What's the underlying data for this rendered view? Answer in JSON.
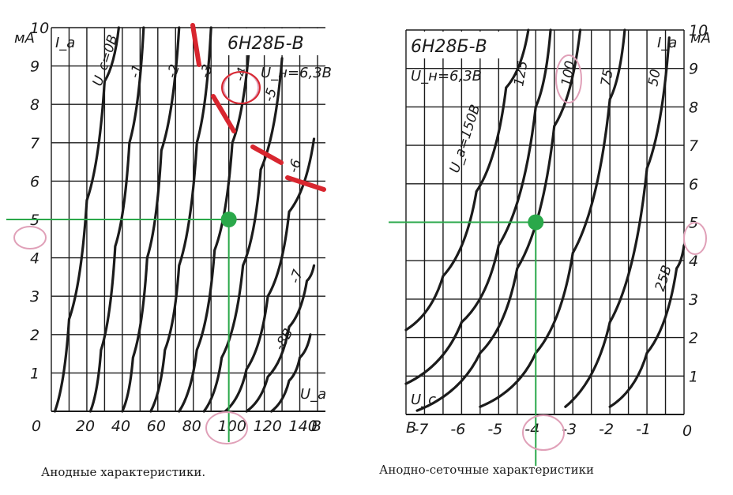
{
  "chart_data": [
    {
      "type": "line",
      "title": "6Н28Б-В",
      "subtitle": "U_н=6,3В",
      "caption": "Анодные характеристики.",
      "ylabel": "I_a",
      "yunit": "мА",
      "xlabel": "U_a",
      "xunit": "В",
      "xlim": [
        0,
        150
      ],
      "ylim": [
        0,
        10
      ],
      "xticks": [
        "20",
        "40",
        "60",
        "80",
        "100",
        "120",
        "140"
      ],
      "yticks": [
        "1",
        "2",
        "3",
        "4",
        "5",
        "6",
        "7",
        "8",
        "9",
        "10"
      ],
      "origin_label": "0",
      "grid": true,
      "series": [
        {
          "name": "U_c=0В",
          "x": [
            2,
            10,
            20,
            30,
            38
          ],
          "y": [
            0,
            2.4,
            5.5,
            8.6,
            10.0
          ]
        },
        {
          "name": "-1",
          "x": [
            22,
            28,
            36,
            44,
            52
          ],
          "y": [
            0,
            1.6,
            4.3,
            7.0,
            10.0
          ]
        },
        {
          "name": "-2",
          "x": [
            40,
            46,
            54,
            62,
            72
          ],
          "y": [
            0,
            1.4,
            4.0,
            6.8,
            10.0
          ]
        },
        {
          "name": "-3",
          "x": [
            56,
            64,
            72,
            82,
            90
          ],
          "y": [
            0,
            1.6,
            3.8,
            7.0,
            10.0
          ]
        },
        {
          "name": "-4",
          "x": [
            72,
            82,
            92,
            102,
            112
          ],
          "y": [
            0,
            1.6,
            4.2,
            7.0,
            9.8
          ]
        },
        {
          "name": "-5",
          "x": [
            86,
            96,
            108,
            118,
            130
          ],
          "y": [
            0,
            1.4,
            3.8,
            6.3,
            9.2
          ]
        },
        {
          "name": "-6",
          "x": [
            98,
            110,
            122,
            134,
            148
          ],
          "y": [
            0,
            1.1,
            3.0,
            5.2,
            7.1
          ]
        },
        {
          "name": "-7",
          "x": [
            110,
            122,
            134,
            144,
            148
          ],
          "y": [
            0,
            0.9,
            2.2,
            3.4,
            3.8
          ]
        },
        {
          "name": "-8В",
          "x": [
            124,
            134,
            140,
            146
          ],
          "y": [
            0,
            0.8,
            1.4,
            2.0
          ]
        }
      ],
      "marker": {
        "x": 100,
        "y": 5
      }
    },
    {
      "type": "line",
      "title": "6Н28Б-В",
      "subtitle": "U_н=6,3В",
      "caption": "Анодно-сеточные характеристики",
      "ylabel": "I_a",
      "yunit": "мА",
      "xlabel": "U_c",
      "xunit": "В",
      "xlim": [
        -7.5,
        0
      ],
      "ylim": [
        0,
        10
      ],
      "xticks": [
        "-7",
        "-6",
        "-5",
        "-4",
        "-3",
        "-2",
        "-1"
      ],
      "yticks": [
        "1",
        "2",
        "3",
        "4",
        "5",
        "6",
        "7",
        "8",
        "9",
        "10"
      ],
      "origin_label": "0",
      "grid": true,
      "series": [
        {
          "name": "U_a=150В",
          "x": [
            -7.5,
            -6.5,
            -5.6,
            -4.8,
            -4.2
          ],
          "y": [
            2.2,
            3.6,
            5.8,
            8.5,
            10.0
          ]
        },
        {
          "name": "125",
          "x": [
            -7.5,
            -6,
            -5,
            -4,
            -3.6
          ],
          "y": [
            0.8,
            2.4,
            4.4,
            8.0,
            10.0
          ]
        },
        {
          "name": "100",
          "x": [
            -7.2,
            -5.5,
            -4.5,
            -3.5,
            -2.8
          ],
          "y": [
            0.1,
            1.6,
            3.8,
            7.5,
            10.0
          ]
        },
        {
          "name": "75",
          "x": [
            -5.5,
            -4,
            -3,
            -2,
            -1.6
          ],
          "y": [
            0.2,
            1.6,
            4.2,
            8.2,
            10.0
          ]
        },
        {
          "name": "50",
          "x": [
            -3.2,
            -2,
            -1,
            -0.4
          ],
          "y": [
            0.2,
            2.4,
            6.4,
            9.8
          ]
        },
        {
          "name": "25В",
          "x": [
            -2,
            -1,
            -0.2,
            0
          ],
          "y": [
            0.2,
            1.6,
            3.8,
            4.4
          ]
        }
      ],
      "marker": {
        "x": -4,
        "y": 5
      }
    }
  ],
  "colors": {
    "ink": "#1b1b1b",
    "marker": "#2aa84a",
    "highlight": "#e0a0b8",
    "strike": "#d8262f"
  }
}
